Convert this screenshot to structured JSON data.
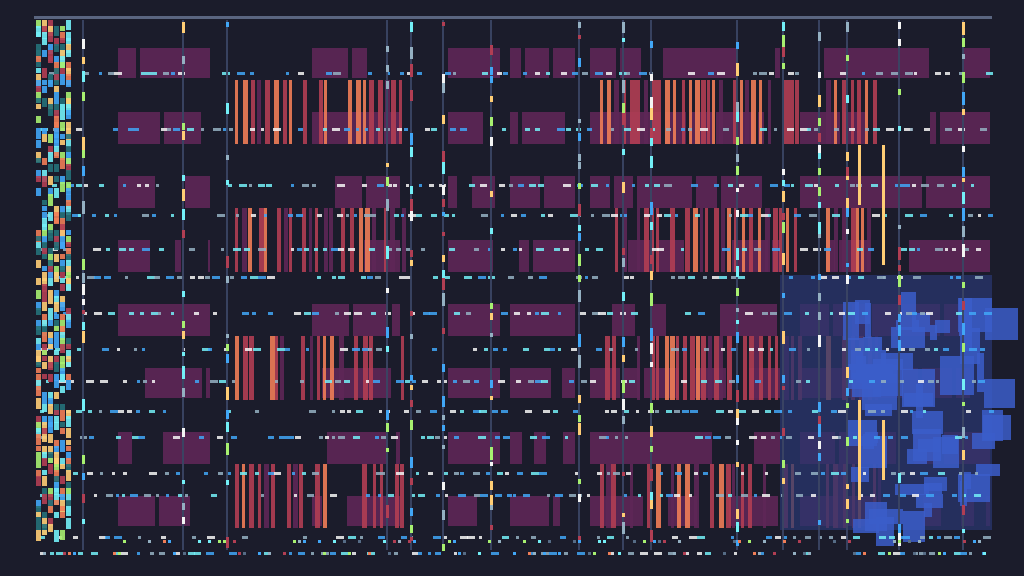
{
  "colors": {
    "background": "#1b1c2b",
    "frame": "#5a6580",
    "column_line": "#3a4463",
    "purple": "#5e2756",
    "red": "#b13e53",
    "orange": "#ef7d57",
    "yellow": "#ffcd75",
    "green": "#a7f070",
    "teal": "#257179",
    "cyan": "#73eff7",
    "sky": "#41a6f6",
    "blue": "#3b5dc9",
    "navy": "#29366f",
    "light": "#f4f4f4",
    "grey": "#94b0c2",
    "slate": "#566c86"
  },
  "dashed_row_colors": [
    "cyan",
    "sky",
    "grey",
    "light"
  ],
  "stripe_colors": [
    "red",
    "orange",
    "red",
    "purple"
  ],
  "edge_colors": [
    "cyan",
    "orange",
    "teal",
    "red",
    "sky",
    "green",
    "yellow"
  ]
}
